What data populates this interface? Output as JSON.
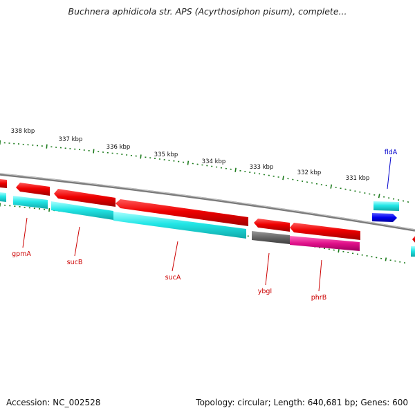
{
  "title": "Buchnera aphidicola str. APS (Acyrthosiphon pisum), complete...",
  "footer": {
    "accession": "Accession: NC_002528",
    "summary": "Topology: circular; Length: 640,681 bp; Genes: 600"
  },
  "colors": {
    "red": "#ee0000",
    "cyan": "#22e6e6",
    "blue": "#0000ee",
    "gray": "#666666",
    "magenta": "#e0108a",
    "green": "#1a7a1a",
    "backbone": "#7a7a7a",
    "label_red": "#cc0000",
    "label_blue": "#0000cc"
  },
  "ruler": [
    "338 kbp",
    "337 kbp",
    "336 kbp",
    "335 kbp",
    "334 kbp",
    "333 kbp",
    "332 kbp",
    "331 kbp"
  ],
  "gene_labels": [
    "gpmA",
    "sucB",
    "sucA",
    "ybgI",
    "phrB",
    "fldA"
  ]
}
